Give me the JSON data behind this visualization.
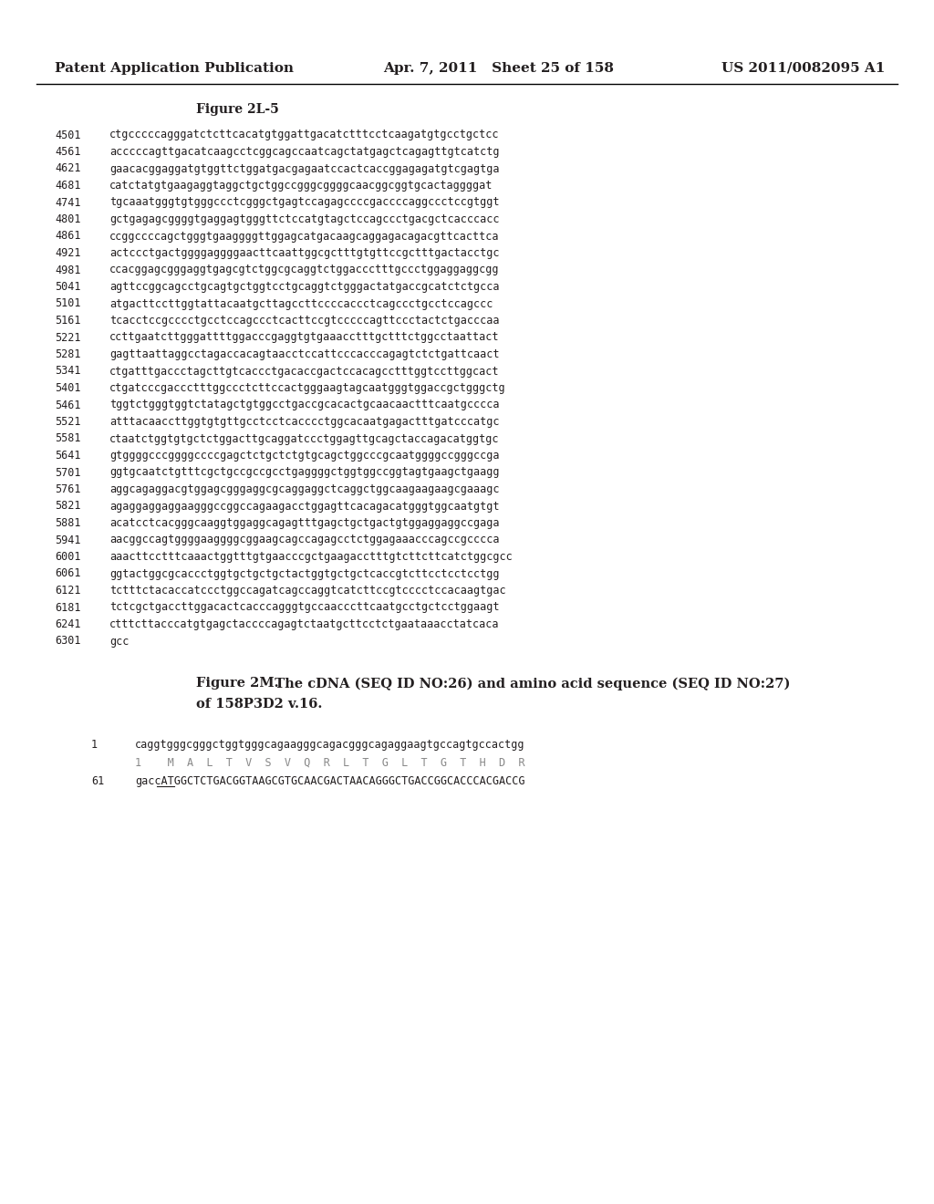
{
  "header_left": "Patent Application Publication",
  "header_mid": "Apr. 7, 2011   Sheet 25 of 158",
  "header_right": "US 2011/0082095 A1",
  "figure_label": "Figure 2L-5",
  "sequence_lines": [
    "4501  ctgcccccagggatctcttcacatgtggattgacatctttcctcaagatgtgcctgctcc",
    "4561  acccccagttgacatcaagcctcggcagccaatcagctatgagctcagagttgtcatctg",
    "4621  gaacacggaggatgtggttctggatgacgagaatccactcaccggagagatgtcgagtga",
    "4681  catctatgtgaagaggtaggctgctggccgggcggggcaacggcggtgcactaggggat",
    "4741  tgcaaatgggtgtgggccctcgggctgagtccagagccccgaccccaggccctccgtggt",
    "4801  gctgagagcggggtgaggagtgggttctccatgtagctccagccctgacgctcacccacc",
    "4861  ccggccccagctgggtgaaggggttggagcatgacaagcaggagacagacgttcacttca",
    "4921  actccctgactggggaggggaacttcaattggcgctttgtgttccgctttgactacctgc",
    "4981  ccacggagcgggaggtgagcgtctggcgcaggtctggaccctttgccctggaggaggcgg",
    "5041  agttccggcagcctgcagtgctggtcctgcaggtctgggactatgaccgcatctctgcca",
    "5101  atgacttccttggtattacaatgcttagccttccccaccctcagccctgcctccagccc",
    "5161  tcacctccgcccctgcctccagccctcacttccgtcccccagttccctactctgacccaa",
    "5221  ccttgaatcttgggattttggacccgaggtgtgaaacctttgctttctggcctaattact",
    "5281  gagttaattaggcctagaccacagtaacctccattcccacccagagtctctgattcaact",
    "5341  ctgatttgaccctagcttgtcaccctgacaccgactccacagcctttggtccttggcact",
    "5401  ctgatcccgaccctttggccctcttccactgggaagtagcaatgggtggaccgctgggctg",
    "5461  tggtctgggtggtctatagctgtggcctgaccgcacactgcaacaactttcaatgcccca",
    "5521  atttacaaccttggtgtgttgcctcctcacccctggcacaatgagactttgatcccatgc",
    "5581  ctaatctggtgtgctctggacttgcaggatccctggagttgcagctaccagacatggtgc",
    "5641  gtggggcccggggccccgagctctgctctgtgcagctggcccgcaatggggccgggccga",
    "5701  ggtgcaatctgtttcgctgccgccgcctgaggggctggtggccggtagtgaagctgaagg",
    "5761  aggcagaggacgtggagcgggaggcgcaggaggctcaggctggcaagaagaagcgaaagc",
    "5821  agaggaggaggaagggccggccagaagacctggagttcacagacatgggtggcaatgtgt",
    "5881  acatcctcacgggcaaggtggaggcagagtttgagctgctgactgtggaggaggccgaga",
    "5941  aacggccagtggggaaggggcggaagcagccagagcctctggagaaacccagccgcccca",
    "6001  aaacttcctttcaaactggtttgtgaacccgctgaagacctttgtcttcttcatctggcgcc",
    "6061  ggtactggcgcaccctggtgctgctgctactggtgctgctcaccgtcttcctcctcctgg",
    "6121  tctttctacaccatccctggccagatcagccaggtcatcttccgtcccctccacaagtgac",
    "6181  tctcgctgaccttggacactcacccagggtgccaacccttcaatgcctgctcctggaagt",
    "6241  ctttcttacccatgtgagctaccccagagtctaatgcttcctctgaataaacctatcaca",
    "6301  gcc"
  ],
  "figure2m_bold": "Figure 2M.",
  "figure2m_rest": "  The cDNA (SEQ ID NO:26) and amino acid sequence (SEQ ID NO:27)",
  "figure2m_line2": "of 158P3D2 v.16.",
  "seq2m_lines": [
    {
      "num": "1",
      "seq": "caggtgggcgggctggtgggcagaagggcagacgggcagaggaagtgccagtgccactgg",
      "type": "dna"
    },
    {
      "num": "",
      "seq": "1    M  A  L  T  V  S  V  Q  R  L  T  G  L  T  G  T  H  D  R",
      "type": "aa"
    },
    {
      "num": "61",
      "seq": "gaccATGGCTCTGACGGTAAGCGTGCAACGACTAACAGGGCTGACCGGCACCCACGACCG",
      "type": "dna_upper"
    }
  ],
  "background_color": "#ffffff",
  "text_color": "#231f20",
  "header_fontsize": 11,
  "mono_fontsize": 8.5,
  "label_fontsize": 10,
  "fig2m_fontsize": 10.5
}
